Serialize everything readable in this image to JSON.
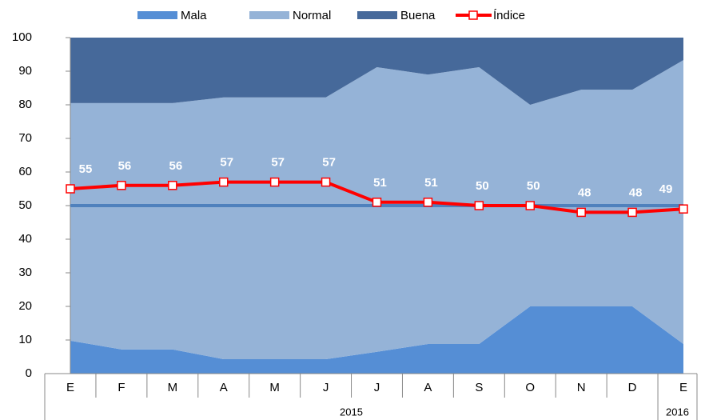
{
  "chart_data": {
    "type": "stacked_area_line",
    "categories": [
      "E",
      "F",
      "M",
      "A",
      "M",
      "J",
      "J",
      "A",
      "S",
      "O",
      "N",
      "D",
      "E"
    ],
    "years": [
      "2015",
      "2015",
      "2015",
      "2015",
      "2015",
      "2015",
      "2015",
      "2015",
      "2015",
      "2015",
      "2015",
      "2015",
      "2016"
    ],
    "series": [
      {
        "name": "Mala",
        "color": "#558ed5",
        "kind": "area",
        "values": [
          9.8,
          7.2,
          7.2,
          4.3,
          4.3,
          4.3,
          6.5,
          8.8,
          8.8,
          20,
          20,
          20,
          8.8
        ]
      },
      {
        "name": "Normal",
        "color": "#95b3d7",
        "kind": "area",
        "values": [
          70.7,
          73.3,
          73.3,
          77.9,
          77.9,
          77.9,
          84.7,
          80.2,
          82.4,
          60,
          64.5,
          64.5,
          84.5
        ]
      },
      {
        "name": "Buena",
        "color": "#46699a",
        "kind": "area",
        "values": [
          19.5,
          19.5,
          19.5,
          17.8,
          17.8,
          17.8,
          8.8,
          11,
          8.8,
          20,
          15.5,
          15.5,
          6.7
        ]
      },
      {
        "name": "Índice",
        "color": "#ff0000",
        "kind": "line",
        "values": [
          55,
          56,
          56,
          57,
          57,
          57,
          51,
          51,
          50,
          50,
          48,
          48,
          49
        ]
      }
    ],
    "reference_line": {
      "value": 50,
      "color": "#4f81bd"
    },
    "ylim": [
      0,
      100
    ],
    "yticks": [
      0,
      10,
      20,
      30,
      40,
      50,
      60,
      70,
      80,
      90,
      100
    ],
    "legend": "top"
  }
}
